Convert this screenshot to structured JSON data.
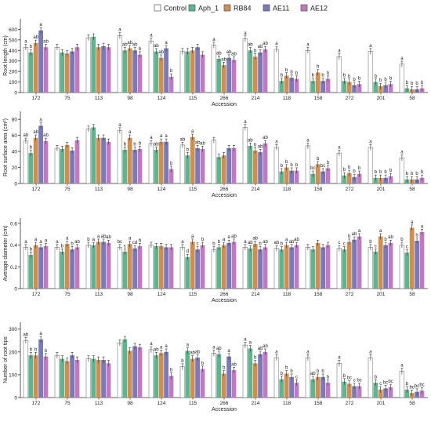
{
  "legend": [
    {
      "name": "Control",
      "color": "#ffffff"
    },
    {
      "name": "Aph_1",
      "color": "#5fb38f"
    },
    {
      "name": "RB84",
      "color": "#cf8f50"
    },
    {
      "name": "AE11",
      "color": "#7a7ab8"
    },
    {
      "name": "AE12",
      "color": "#c07ac0"
    }
  ],
  "chart_data": [
    {
      "type": "bar",
      "ylabel": "Root length (cm)",
      "xlabel": "Accession",
      "ylim": [
        0,
        700
      ],
      "yticks": [
        0,
        100,
        200,
        300,
        400,
        500,
        600
      ],
      "categories": [
        "172",
        "75",
        "113",
        "98",
        "124",
        "115",
        "266",
        "214",
        "118",
        "158",
        "272",
        "201",
        "58"
      ],
      "series": [
        {
          "name": "Control",
          "values": [
            430,
            430,
            520,
            540,
            490,
            390,
            450,
            510,
            410,
            400,
            340,
            390,
            270
          ]
        },
        {
          "name": "Aph_1",
          "values": [
            380,
            380,
            530,
            400,
            390,
            390,
            320,
            400,
            110,
            110,
            110,
            100,
            40
          ]
        },
        {
          "name": "RB84",
          "values": [
            470,
            370,
            430,
            420,
            330,
            400,
            260,
            340,
            160,
            190,
            100,
            60,
            30
          ]
        },
        {
          "name": "AE11",
          "values": [
            590,
            390,
            440,
            400,
            420,
            430,
            330,
            380,
            140,
            110,
            70,
            70,
            30
          ]
        },
        {
          "name": "AE12",
          "values": [
            430,
            430,
            430,
            360,
            150,
            360,
            310,
            410,
            130,
            130,
            80,
            80,
            40
          ]
        }
      ],
      "letters": [
        [
          "a",
          "",
          "",
          "a",
          "a",
          "",
          "a",
          "a",
          "a",
          "a",
          "a",
          "a",
          "a"
        ],
        [
          "b",
          "",
          "",
          "ab",
          "ab",
          "",
          "ab",
          "ab",
          "b",
          "b",
          "b",
          "b",
          "b"
        ],
        [
          "ab",
          "",
          "",
          "ab",
          "ab",
          "",
          "ab",
          "b",
          "b",
          "b",
          "b",
          "b",
          "b"
        ],
        [
          "a",
          "",
          "",
          "ab",
          "a",
          "",
          "ab",
          "ab",
          "b",
          "b",
          "b",
          "b",
          "b"
        ],
        [
          "ab",
          "",
          "",
          "b",
          "b",
          "",
          "ab",
          "ab",
          "b",
          "b",
          "b",
          "b",
          "b"
        ]
      ]
    },
    {
      "type": "bar",
      "ylabel": "Root surface area (cm²)",
      "xlabel": "Accession",
      "ylim": [
        0,
        90
      ],
      "yticks": [
        0,
        20,
        40,
        60,
        80
      ],
      "categories": [
        "172",
        "75",
        "113",
        "98",
        "124",
        "115",
        "266",
        "214",
        "118",
        "158",
        "272",
        "201",
        "58"
      ],
      "series": [
        {
          "name": "Control",
          "values": [
            53,
            44,
            68,
            66,
            50,
            48,
            54,
            70,
            45,
            47,
            38,
            45,
            32
          ]
        },
        {
          "name": "Aph_1",
          "values": [
            38,
            43,
            70,
            42,
            42,
            35,
            33,
            47,
            15,
            12,
            10,
            7,
            5
          ]
        },
        {
          "name": "RB84",
          "values": [
            57,
            48,
            57,
            57,
            52,
            58,
            35,
            41,
            20,
            24,
            13,
            7,
            5
          ]
        },
        {
          "name": "AE11",
          "values": [
            72,
            41,
            57,
            42,
            52,
            44,
            44,
            39,
            16,
            15,
            8,
            7,
            5
          ]
        },
        {
          "name": "AE12",
          "values": [
            53,
            54,
            52,
            43,
            18,
            43,
            44,
            50,
            16,
            19,
            12,
            9,
            7
          ]
        }
      ],
      "letters": [
        [
          "ab",
          "",
          "",
          "a",
          "a",
          "ab",
          "",
          "a",
          "a",
          "a",
          "a",
          "a",
          "a"
        ],
        [
          "b",
          "",
          "",
          "b",
          "ab",
          "b",
          "",
          "ab",
          "b",
          "bc",
          "b",
          "b",
          "b"
        ],
        [
          "ab",
          "",
          "",
          "a",
          "a",
          "a",
          "",
          "b",
          "b",
          "b",
          "b",
          "b",
          "b"
        ],
        [
          "a",
          "",
          "",
          "b",
          "a",
          "ab",
          "",
          "ab",
          "b",
          "bc",
          "b",
          "b",
          "b"
        ],
        [
          "ab",
          "",
          "",
          "b",
          "b",
          "ab",
          "",
          "ab",
          "b",
          "b",
          "b",
          "b",
          "b"
        ]
      ]
    },
    {
      "type": "bar",
      "ylabel": "Average diameter (cm)",
      "xlabel": "Accession",
      "ylim": [
        0,
        0.65
      ],
      "yticks": [
        0,
        0.2,
        0.4,
        0.6
      ],
      "categories": [
        "172",
        "75",
        "113",
        "98",
        "124",
        "115",
        "266",
        "214",
        "118",
        "158",
        "272",
        "201",
        "58"
      ],
      "series": [
        {
          "name": "Control",
          "values": [
            0.38,
            0.38,
            0.4,
            0.38,
            0.4,
            0.38,
            0.36,
            0.38,
            0.37,
            0.38,
            0.37,
            0.38,
            0.4
          ]
        },
        {
          "name": "Aph_1",
          "values": [
            0.31,
            0.34,
            0.4,
            0.34,
            0.39,
            0.29,
            0.38,
            0.37,
            0.36,
            0.36,
            0.36,
            0.34,
            0.33
          ]
        },
        {
          "name": "RB84",
          "values": [
            0.4,
            0.41,
            0.43,
            0.41,
            0.39,
            0.43,
            0.4,
            0.41,
            0.4,
            0.42,
            0.43,
            0.48,
            0.56
          ]
        },
        {
          "name": "AE11",
          "values": [
            0.38,
            0.36,
            0.43,
            0.37,
            0.38,
            0.36,
            0.42,
            0.36,
            0.38,
            0.38,
            0.45,
            0.4,
            0.44
          ]
        },
        {
          "name": "AE12",
          "values": [
            0.39,
            0.38,
            0.42,
            0.39,
            0.38,
            0.4,
            0.43,
            0.38,
            0.4,
            0.4,
            0.48,
            0.42,
            0.52
          ]
        }
      ],
      "letters": [
        [
          "a",
          "a",
          "b",
          "bc",
          "",
          "a",
          "b",
          "a",
          "ab",
          "",
          "c",
          "b",
          "b"
        ],
        [
          "b",
          "b",
          "a",
          "c",
          "",
          "d",
          "b",
          "ab",
          "b",
          "",
          "c",
          "c",
          "c"
        ],
        [
          "a",
          "a",
          "a",
          "a",
          "",
          "a",
          "a",
          "ab",
          "a",
          "",
          "b",
          "a",
          "a"
        ],
        [
          "a",
          "b",
          "ab",
          "cd",
          "",
          "c",
          "a",
          "b",
          "ab",
          "",
          "ab",
          "b",
          "b"
        ],
        [
          "a",
          "ab",
          "ab",
          "b",
          "",
          "b",
          "ab",
          "ab",
          "ab",
          "",
          "a",
          "ab",
          "a"
        ]
      ]
    },
    {
      "type": "bar",
      "ylabel": "Number of root tips",
      "xlabel": "Accession",
      "ylim": [
        0,
        330
      ],
      "yticks": [
        0,
        100,
        200,
        300
      ],
      "categories": [
        "172",
        "75",
        "113",
        "98",
        "124",
        "115",
        "266",
        "214",
        "118",
        "158",
        "272",
        "201",
        "58"
      ],
      "series": [
        {
          "name": "Control",
          "values": [
            250,
            185,
            170,
            240,
            210,
            135,
            195,
            230,
            175,
            175,
            150,
            175,
            115
          ]
        },
        {
          "name": "Aph_1",
          "values": [
            185,
            170,
            170,
            255,
            185,
            205,
            190,
            215,
            80,
            80,
            70,
            65,
            35
          ]
        },
        {
          "name": "RB84",
          "values": [
            185,
            160,
            165,
            205,
            195,
            170,
            105,
            150,
            105,
            90,
            60,
            35,
            20
          ]
        },
        {
          "name": "AE11",
          "values": [
            255,
            185,
            165,
            225,
            200,
            175,
            180,
            190,
            90,
            90,
            50,
            40,
            25
          ]
        },
        {
          "name": "AE12",
          "values": [
            180,
            165,
            150,
            220,
            95,
            125,
            120,
            200,
            65,
            65,
            50,
            45,
            30
          ]
        }
      ],
      "letters": [
        [
          "ab",
          "",
          "",
          "",
          "a",
          "b",
          "a",
          "a",
          "a",
          "a",
          "a",
          "a",
          "a"
        ],
        [
          "b",
          "",
          "",
          "",
          "ab",
          "a",
          "ab",
          "a",
          "b",
          "ab",
          "b",
          "b",
          "b"
        ],
        [
          "b",
          "",
          "",
          "",
          "a",
          "ab",
          "b",
          "b",
          "b",
          "b",
          "bc",
          "c",
          "bc"
        ],
        [
          "a",
          "",
          "",
          "",
          "a",
          "ab",
          "a",
          "ab",
          "b",
          "b",
          "c",
          "bc",
          "bc"
        ],
        [
          "b",
          "",
          "",
          "",
          "b",
          "b",
          "ab",
          "ab",
          "c",
          "b",
          "bc",
          "bc",
          "bc"
        ]
      ]
    }
  ]
}
